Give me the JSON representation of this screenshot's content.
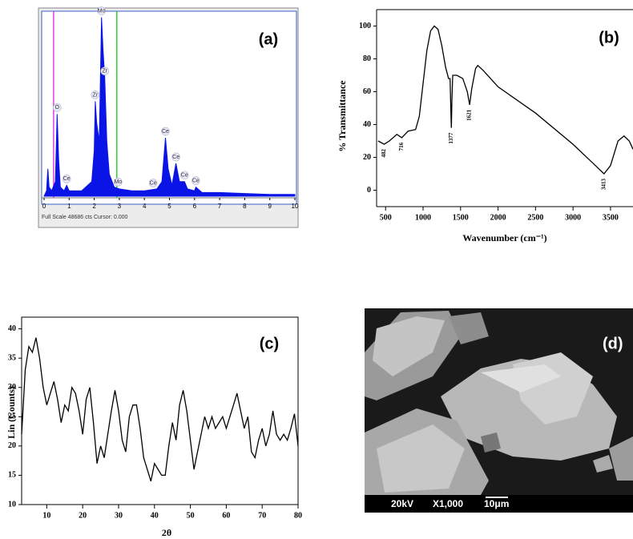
{
  "chart_data": [
    {
      "type": "area",
      "panel_label": "(a)",
      "color": "#0a14e6",
      "footer": "Full Scale 48686 cts Cursor: 0.000",
      "x": [
        0,
        0.1,
        0.15,
        0.2,
        0.3,
        0.45,
        0.52,
        0.58,
        0.65,
        0.8,
        0.9,
        1.0,
        1.5,
        1.9,
        2.0,
        2.04,
        2.1,
        2.2,
        2.29,
        2.35,
        2.42,
        2.5,
        2.6,
        2.8,
        3.0,
        3.5,
        4.0,
        4.5,
        4.7,
        4.84,
        4.95,
        5.1,
        5.26,
        5.4,
        5.6,
        5.72,
        6.0,
        6.05,
        6.3,
        7,
        8,
        9,
        10
      ],
      "values": [
        0,
        3,
        15,
        5,
        3,
        8,
        45,
        20,
        5,
        3,
        6,
        3,
        3,
        8,
        25,
        52,
        40,
        30,
        98,
        80,
        65,
        30,
        12,
        5,
        4,
        3,
        3,
        4,
        8,
        32,
        15,
        6,
        18,
        8,
        8,
        4,
        3,
        5,
        2,
        2,
        1.5,
        1,
        1
      ],
      "xlim": [
        0,
        10
      ],
      "ylim": [
        0,
        100
      ],
      "xticks": [
        0,
        1,
        2,
        3,
        4,
        5,
        6,
        7,
        8,
        9,
        10
      ],
      "markers": [
        {
          "x": 0.38,
          "color": "#e040e0"
        },
        {
          "x": 2.9,
          "color": "#30d030"
        }
      ],
      "peak_labels": [
        {
          "label": "O",
          "x": 0.52
        },
        {
          "label": "Ce",
          "x": 0.9
        },
        {
          "label": "Zr",
          "x": 2.04
        },
        {
          "label": "Mo",
          "x": 2.29
        },
        {
          "label": "Zr",
          "x": 2.42
        },
        {
          "label": "Mo",
          "x": 2.95
        },
        {
          "label": "Ce",
          "x": 4.35
        },
        {
          "label": "Ce",
          "x": 4.84
        },
        {
          "label": "Ce",
          "x": 5.26
        },
        {
          "label": "Ce",
          "x": 5.6
        },
        {
          "label": "Ce",
          "x": 6.05
        }
      ]
    },
    {
      "type": "line",
      "panel_label": "(b)",
      "color": "#000000",
      "xlabel": "Wavenumber (cm⁻¹)",
      "ylabel": "% Transmittance",
      "x": [
        400,
        482,
        550,
        650,
        716,
        800,
        900,
        950,
        1000,
        1050,
        1100,
        1150,
        1200,
        1250,
        1300,
        1340,
        1360,
        1370,
        1377,
        1385,
        1395,
        1450,
        1530,
        1590,
        1621,
        1650,
        1700,
        1730,
        1800,
        2000,
        2500,
        3000,
        3300,
        3413,
        3500,
        3600,
        3680,
        3750,
        3800
      ],
      "values": [
        30,
        28,
        30,
        34,
        32,
        36,
        37,
        45,
        65,
        85,
        97,
        100,
        98,
        88,
        75,
        68,
        68,
        50,
        38,
        55,
        70,
        70,
        68,
        60,
        52,
        62,
        74,
        76,
        73,
        63,
        47,
        28,
        15,
        10,
        15,
        30,
        33,
        30,
        25
      ],
      "xlim": [
        380,
        3800
      ],
      "ylim": [
        -10,
        110
      ],
      "xticks": [
        500,
        1000,
        1500,
        2000,
        2500,
        3000,
        3500
      ],
      "yticks": [
        0,
        20,
        40,
        60,
        80,
        100
      ],
      "annotations": [
        {
          "label": "482",
          "x": 482
        },
        {
          "label": "716",
          "x": 716
        },
        {
          "label": "1377",
          "x": 1377
        },
        {
          "label": "1621",
          "x": 1621
        },
        {
          "label": "3413",
          "x": 3413
        }
      ]
    },
    {
      "type": "line",
      "panel_label": "(c)",
      "color": "#000000",
      "xlabel": "2θ",
      "ylabel": "Lin (Counts)",
      "x": [
        3,
        4,
        5,
        6,
        7,
        8,
        9,
        10,
        11,
        12,
        13,
        14,
        15,
        16,
        17,
        18,
        19,
        20,
        21,
        22,
        23,
        24,
        25,
        26,
        27,
        28,
        29,
        30,
        31,
        32,
        33,
        34,
        35,
        36,
        37,
        38,
        39,
        40,
        41,
        42,
        43,
        44,
        45,
        46,
        47,
        48,
        49,
        50,
        51,
        52,
        53,
        54,
        55,
        56,
        57,
        58,
        59,
        60,
        61,
        62,
        63,
        64,
        65,
        66,
        67,
        68,
        69,
        70,
        71,
        72,
        73,
        74,
        75,
        76,
        77,
        78,
        79,
        80
      ],
      "values": [
        22,
        33,
        37,
        36,
        38.5,
        35,
        30,
        27,
        29,
        31,
        28,
        24,
        27,
        26,
        30,
        29,
        26,
        22,
        28,
        30,
        24,
        17,
        20,
        18,
        22,
        26,
        29.5,
        26,
        21,
        19,
        25,
        27,
        27,
        23,
        18,
        16,
        14,
        17,
        16,
        15,
        15,
        20,
        24,
        21,
        27,
        29.5,
        26,
        21,
        16,
        19,
        22,
        25,
        23,
        25,
        23,
        24,
        25,
        23,
        25,
        27,
        29,
        26,
        23,
        25,
        19,
        18,
        21,
        23,
        20,
        22,
        26,
        22,
        21,
        22,
        21,
        23,
        25.5,
        20
      ],
      "xlim": [
        3,
        80
      ],
      "ylim": [
        10,
        42
      ],
      "xticks": [
        10,
        20,
        30,
        40,
        50,
        60,
        70,
        80
      ],
      "yticks": [
        10,
        15,
        20,
        25,
        30,
        35,
        40
      ]
    }
  ],
  "sem_image": {
    "panel_label": "(d)",
    "info": [
      "20kV",
      "X1,000",
      "10μm"
    ]
  }
}
